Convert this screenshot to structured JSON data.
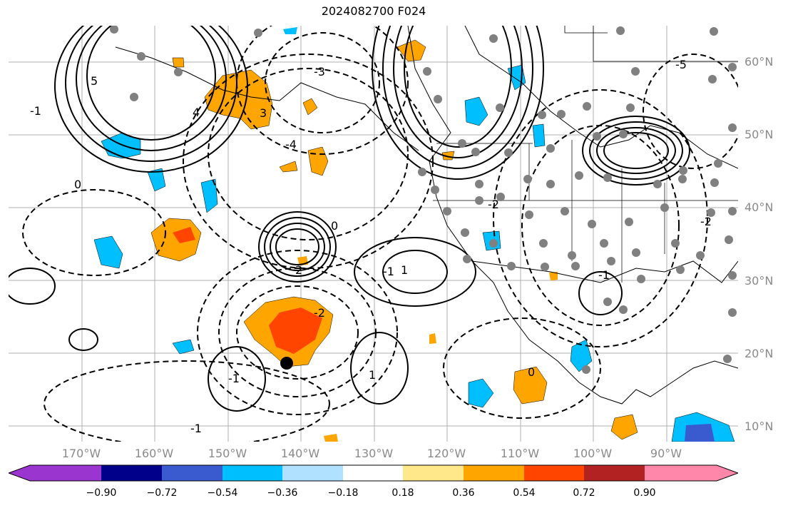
{
  "title": "2024082700 F024",
  "latitude_labels": [
    "60°N",
    "50°N",
    "40°N",
    "30°N",
    "20°N",
    "10°N"
  ],
  "longitude_labels": [
    "170°W",
    "160°W",
    "150°W",
    "140°W",
    "130°W",
    "120°W",
    "110°W",
    "100°W",
    "90°W"
  ],
  "contour_labels": [
    "5",
    "3",
    "-3",
    "0",
    "-1",
    "4",
    "-4",
    "-5",
    "-2",
    "2",
    "1",
    "0",
    "-1",
    "-2",
    "-1",
    "1",
    "-2",
    "-1",
    "0",
    "-1"
  ],
  "colorbar": {
    "ticks": [
      "−0.90",
      "−0.72",
      "−0.54",
      "−0.36",
      "−0.18",
      "0.18",
      "0.36",
      "0.54",
      "0.72",
      "0.90"
    ],
    "colors": [
      "#9b35d0",
      "#00008b",
      "#3a5ad0",
      "#00bfff",
      "#b0e2ff",
      "#ffffff",
      "#ffe88a",
      "#ffa500",
      "#ff4500",
      "#b22222",
      "#ff88aa"
    ]
  },
  "marker_symbol": "black-dot"
}
